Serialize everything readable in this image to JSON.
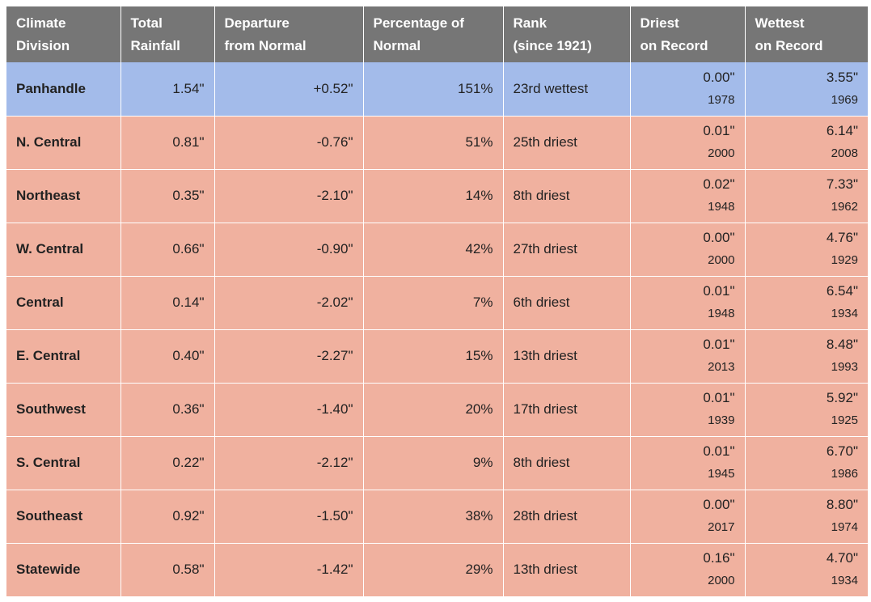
{
  "table": {
    "headers": [
      {
        "line1": "Climate",
        "line2": "Division"
      },
      {
        "line1": "Total",
        "line2": "Rainfall"
      },
      {
        "line1": "Departure",
        "line2": "from Normal"
      },
      {
        "line1": "Percentage of",
        "line2": "Normal"
      },
      {
        "line1": "Rank",
        "line2": "(since 1921)"
      },
      {
        "line1": "Driest",
        "line2": "on Record"
      },
      {
        "line1": "Wettest",
        "line2": "on Record"
      }
    ],
    "rows": [
      {
        "division": "Panhandle",
        "total": "1.54\"",
        "departure": "+0.52\"",
        "percent": "151%",
        "rank": "23rd wettest",
        "driest_value": "0.00\"",
        "driest_year": "1978",
        "wettest_value": "3.55\"",
        "wettest_year": "1969",
        "status": "wet"
      },
      {
        "division": "N. Central",
        "total": "0.81\"",
        "departure": "-0.76\"",
        "percent": "51%",
        "rank": "25th driest",
        "driest_value": "0.01\"",
        "driest_year": "2000",
        "wettest_value": "6.14\"",
        "wettest_year": "2008",
        "status": "dry"
      },
      {
        "division": "Northeast",
        "total": "0.35\"",
        "departure": "-2.10\"",
        "percent": "14%",
        "rank": "8th driest",
        "driest_value": "0.02\"",
        "driest_year": "1948",
        "wettest_value": "7.33\"",
        "wettest_year": "1962",
        "status": "dry"
      },
      {
        "division": "W. Central",
        "total": "0.66\"",
        "departure": "-0.90\"",
        "percent": "42%",
        "rank": "27th driest",
        "driest_value": "0.00\"",
        "driest_year": "2000",
        "wettest_value": "4.76\"",
        "wettest_year": "1929",
        "status": "dry"
      },
      {
        "division": "Central",
        "total": "0.14\"",
        "departure": "-2.02\"",
        "percent": "7%",
        "rank": "6th driest",
        "driest_value": "0.01\"",
        "driest_year": "1948",
        "wettest_value": "6.54\"",
        "wettest_year": "1934",
        "status": "dry"
      },
      {
        "division": "E. Central",
        "total": "0.40\"",
        "departure": "-2.27\"",
        "percent": "15%",
        "rank": "13th driest",
        "driest_value": "0.01\"",
        "driest_year": "2013",
        "wettest_value": "8.48\"",
        "wettest_year": "1993",
        "status": "dry"
      },
      {
        "division": "Southwest",
        "total": "0.36\"",
        "departure": "-1.40\"",
        "percent": "20%",
        "rank": "17th driest",
        "driest_value": "0.01\"",
        "driest_year": "1939",
        "wettest_value": "5.92\"",
        "wettest_year": "1925",
        "status": "dry"
      },
      {
        "division": "S. Central",
        "total": "0.22\"",
        "departure": "-2.12\"",
        "percent": "9%",
        "rank": "8th driest",
        "driest_value": "0.01\"",
        "driest_year": "1945",
        "wettest_value": "6.70\"",
        "wettest_year": "1986",
        "status": "dry"
      },
      {
        "division": "Southeast",
        "total": "0.92\"",
        "departure": "-1.50\"",
        "percent": "38%",
        "rank": "28th driest",
        "driest_value": "0.00\"",
        "driest_year": "2017",
        "wettest_value": "8.80\"",
        "wettest_year": "1974",
        "status": "dry"
      },
      {
        "division": "Statewide",
        "total": "0.58\"",
        "departure": "-1.42\"",
        "percent": "29%",
        "rank": "13th driest",
        "driest_value": "0.16\"",
        "driest_year": "2000",
        "wettest_value": "4.70\"",
        "wettest_year": "1934",
        "status": "dry"
      }
    ]
  },
  "colors": {
    "header_bg": "#767676",
    "header_text": "#ffffff",
    "wet_row_bg": "#a3bbea",
    "dry_row_bg": "#f0b19f"
  }
}
